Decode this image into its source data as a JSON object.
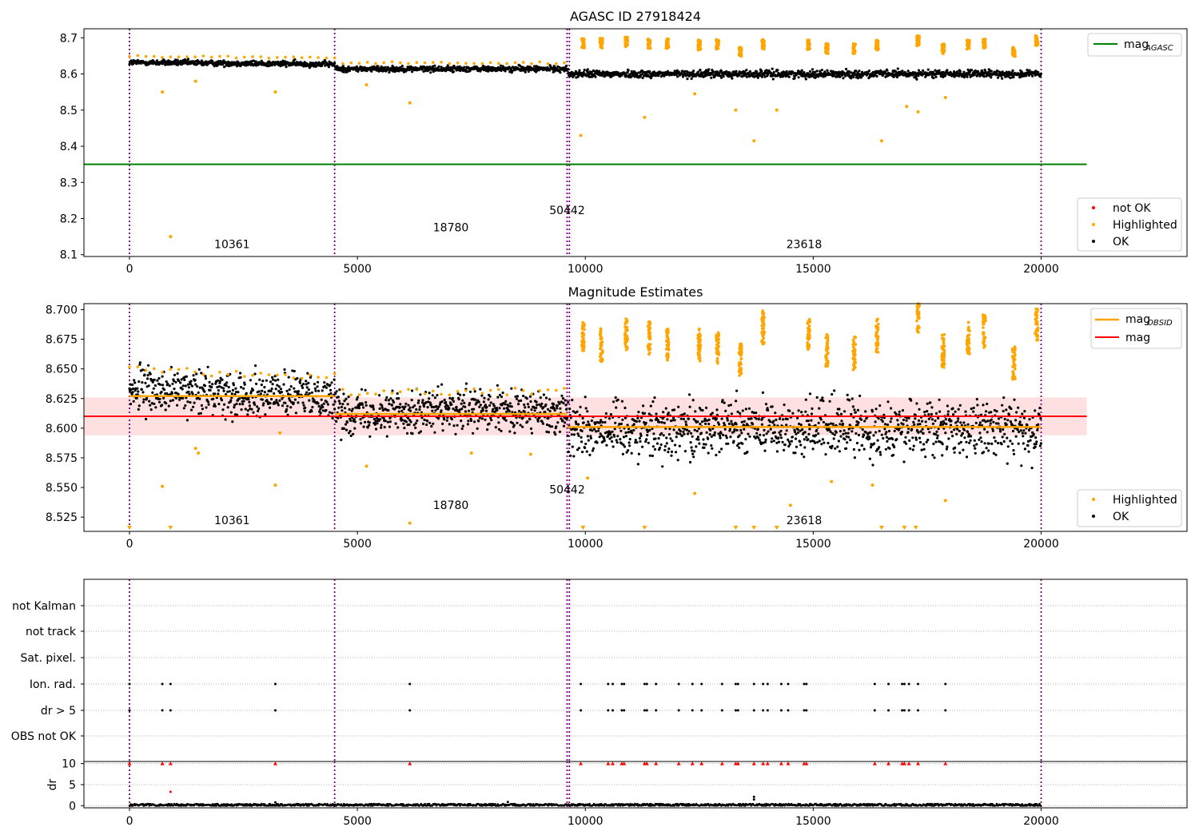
{
  "colors": {
    "ok": "#000000",
    "highlighted": "#ffa500",
    "not_ok": "#ff0000",
    "agasc_line": "#008000",
    "mag_line": "#ff0000",
    "obsid_line": "#ffa500",
    "obs_boundary": "#800080",
    "band_fill": "#ffcccc"
  },
  "chart_data": [
    {
      "type": "scatter",
      "title": "AGASC ID 27918424",
      "xlim": [
        -1000,
        23200
      ],
      "ylim": [
        8.095,
        8.725
      ],
      "xticks": [
        "0",
        "5000",
        "10000",
        "15000",
        "20000"
      ],
      "yticks": [
        "8.1",
        "8.2",
        "8.3",
        "8.4",
        "8.5",
        "8.6",
        "8.7"
      ],
      "ok_trend": [
        [
          0,
          8.632
        ],
        [
          4500,
          8.627
        ],
        [
          4520,
          8.614
        ],
        [
          9600,
          8.614
        ],
        [
          9630,
          8.6
        ],
        [
          20000,
          8.6
        ]
      ],
      "ok_scatter": 0.008,
      "mag_agasc": 8.35,
      "obs_boundaries": [
        0,
        4500,
        9600,
        9650,
        20000
      ],
      "obsid_labels": [
        {
          "text": "10361",
          "x": 2250,
          "y": 8.118
        },
        {
          "text": "18780",
          "x": 7050,
          "y": 8.165
        },
        {
          "text": "50442",
          "x": 9600,
          "y": 8.212
        },
        {
          "text": "23618",
          "x": 14800,
          "y": 8.118
        }
      ],
      "highlighted_points": [
        [
          900,
          8.15
        ],
        [
          720,
          8.55
        ],
        [
          3200,
          8.55
        ],
        [
          6150,
          8.52
        ],
        [
          9900,
          8.43
        ],
        [
          11300,
          8.48
        ],
        [
          12400,
          8.545
        ],
        [
          13300,
          8.5
        ],
        [
          13700,
          8.415
        ],
        [
          14200,
          8.5
        ],
        [
          16500,
          8.415
        ],
        [
          17050,
          8.51
        ],
        [
          17300,
          8.495
        ],
        [
          17900,
          8.535
        ],
        [
          1450,
          8.58
        ],
        [
          5200,
          8.57
        ]
      ],
      "highlighted_clusters": [
        [
          9950,
          8.685
        ],
        [
          10350,
          8.685
        ],
        [
          10900,
          8.688
        ],
        [
          11400,
          8.685
        ],
        [
          11800,
          8.685
        ],
        [
          12500,
          8.68
        ],
        [
          12900,
          8.682
        ],
        [
          13400,
          8.66
        ],
        [
          13900,
          8.682
        ],
        [
          14900,
          8.68
        ],
        [
          15300,
          8.67
        ],
        [
          15900,
          8.67
        ],
        [
          16400,
          8.68
        ],
        [
          17300,
          8.692
        ],
        [
          17850,
          8.67
        ],
        [
          18400,
          8.68
        ],
        [
          18750,
          8.685
        ],
        [
          19400,
          8.66
        ],
        [
          19900,
          8.692
        ]
      ],
      "legend_lines": [
        {
          "label": "mag",
          "sub": "AGASC"
        }
      ],
      "legend_points": [
        "not OK",
        "Highlighted",
        "OK"
      ]
    },
    {
      "type": "scatter",
      "title": "Magnitude Estimates",
      "xlim": [
        -1000,
        23200
      ],
      "ylim": [
        8.513,
        8.705
      ],
      "xticks": [
        "0",
        "5000",
        "10000",
        "15000",
        "20000"
      ],
      "yticks": [
        "8.525",
        "8.550",
        "8.575",
        "8.600",
        "8.625",
        "8.650",
        "8.675",
        "8.700"
      ],
      "ok_trend": [
        [
          0,
          8.632
        ],
        [
          4500,
          8.627
        ],
        [
          4520,
          8.614
        ],
        [
          9600,
          8.614
        ],
        [
          9630,
          8.6
        ],
        [
          20000,
          8.6
        ]
      ],
      "ok_scatter": 0.008,
      "mag": 8.61,
      "mag_band": [
        8.594,
        8.626
      ],
      "mag_obsid": [
        {
          "x": [
            0,
            4500
          ],
          "y": 8.627
        },
        {
          "x": [
            4500,
            9600
          ],
          "y": 8.612
        },
        {
          "x": [
            9600,
            20000
          ],
          "y": 8.601
        }
      ],
      "obs_boundaries": [
        0,
        4500,
        9600,
        9650,
        20000
      ],
      "obsid_labels": [
        {
          "text": "10361",
          "x": 2250,
          "y": 8.519
        },
        {
          "text": "18780",
          "x": 7050,
          "y": 8.532
        },
        {
          "text": "50442",
          "x": 9600,
          "y": 8.545
        },
        {
          "text": "23618",
          "x": 14800,
          "y": 8.519
        }
      ],
      "highlighted_points": [
        [
          720,
          8.551
        ],
        [
          3200,
          8.552
        ],
        [
          6150,
          8.52
        ],
        [
          5200,
          8.568
        ],
        [
          1450,
          8.583
        ],
        [
          1510,
          8.579
        ],
        [
          3300,
          8.596
        ],
        [
          7500,
          8.579
        ],
        [
          8800,
          8.578
        ],
        [
          10050,
          8.558
        ],
        [
          12400,
          8.545
        ],
        [
          14500,
          8.535
        ],
        [
          15400,
          8.555
        ],
        [
          16300,
          8.552
        ],
        [
          17900,
          8.539
        ]
      ],
      "highlighted_clusters": [
        [
          9950,
          8.676
        ],
        [
          10350,
          8.67
        ],
        [
          10900,
          8.68
        ],
        [
          11400,
          8.676
        ],
        [
          11800,
          8.67
        ],
        [
          12500,
          8.67
        ],
        [
          12900,
          8.668
        ],
        [
          13400,
          8.658
        ],
        [
          13900,
          8.685
        ],
        [
          14900,
          8.678
        ],
        [
          15300,
          8.665
        ],
        [
          15900,
          8.663
        ],
        [
          16400,
          8.678
        ],
        [
          17300,
          8.694
        ],
        [
          17850,
          8.665
        ],
        [
          18400,
          8.676
        ],
        [
          18750,
          8.682
        ],
        [
          19400,
          8.655
        ],
        [
          19900,
          8.688
        ]
      ],
      "below_axis_markers": [
        0,
        900,
        9950,
        11300,
        13300,
        13700,
        14200,
        16500,
        17000,
        17250
      ],
      "legend_lines": [
        {
          "label": "mag",
          "sub": "OBSID"
        },
        {
          "label": "mag",
          "sub": ""
        }
      ],
      "legend_points": [
        "Highlighted",
        "OK"
      ]
    },
    {
      "type": "scatter",
      "xlim": [
        -1000,
        23200
      ],
      "xticks": [
        "0",
        "5000",
        "10000",
        "15000",
        "20000"
      ],
      "flag_rows": [
        "not Kalman",
        "not track",
        "Sat. pixel.",
        "Ion. rad.",
        "dr > 5",
        "OBS not OK"
      ],
      "flag_events": [
        0,
        720,
        900,
        3200,
        6150,
        9900,
        10500,
        10600,
        10800,
        10850,
        11300,
        11350,
        11550,
        12050,
        12350,
        12550,
        13000,
        13300,
        13350,
        13700,
        13900,
        14000,
        14300,
        14450,
        14800,
        14850,
        16350,
        16650,
        16950,
        17000,
        17100,
        17300,
        17900
      ],
      "obs_boundaries": [
        0,
        4500,
        9600,
        9650,
        20000
      ]
    },
    {
      "type": "scatter",
      "ylabel": "dr",
      "xlim": [
        -1000,
        23200
      ],
      "ylim": [
        -0.5,
        10.5
      ],
      "xticks": [
        "0",
        "5000",
        "10000",
        "15000",
        "20000"
      ],
      "yticks": [
        "0",
        "5",
        "10"
      ],
      "dr_baseline": 0.2,
      "dr_outliers": [
        [
          900,
          3.3
        ],
        [
          13700,
          2.1
        ],
        [
          13700,
          1.5
        ],
        [
          8300,
          0.9
        ],
        [
          3200,
          0.8
        ]
      ],
      "dr_clipped": 10,
      "obs_boundaries": [
        0,
        4500,
        9600,
        9650,
        20000
      ]
    }
  ]
}
